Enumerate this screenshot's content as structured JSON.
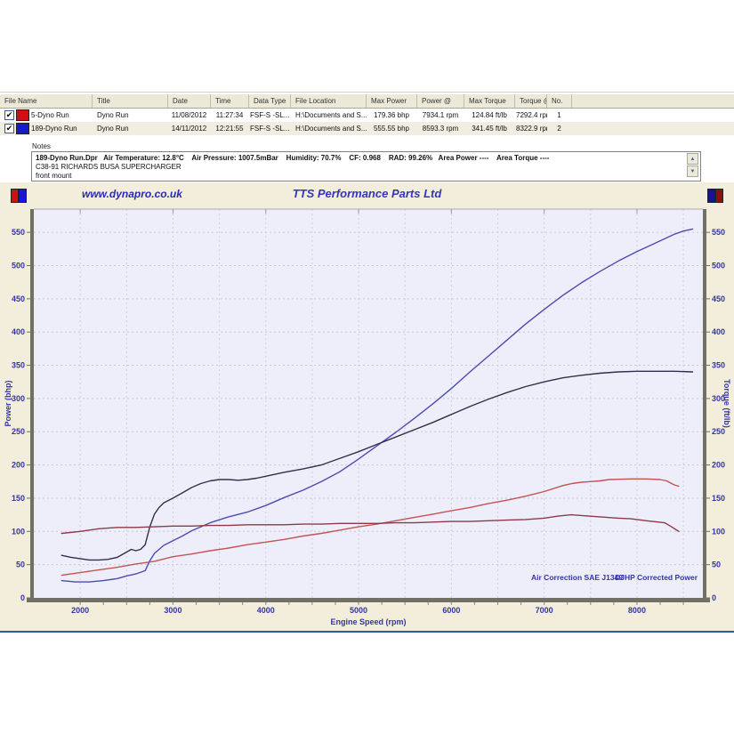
{
  "table": {
    "columns": [
      "File Name",
      "Title",
      "Date",
      "Time",
      "Data Type",
      "File Location",
      "Max Power",
      "Power @",
      "Max Torque",
      "Torque @",
      "No."
    ],
    "rows": [
      {
        "checked": true,
        "swatch_color": "#d01010",
        "cells": [
          "5-Dyno Run",
          "Dyno Run",
          "11/08/2012",
          "11:27:34",
          "FSF-S -SL...",
          "H:\\Documents and S...",
          "179.36 bhp",
          "7934.1 rpm",
          "124.84 ft/lb",
          "7292.4 rpm",
          "1"
        ]
      },
      {
        "checked": true,
        "swatch_color": "#1818cc",
        "cells": [
          "189-Dyno Run",
          "Dyno Run",
          "14/11/2012",
          "12:21:55",
          "FSF-S -SL...",
          "H:\\Documents and S...",
          "555.55 bhp",
          "8593.3 rpm",
          "341.45 ft/lb",
          "8322.9 rpm",
          "2"
        ]
      }
    ]
  },
  "notes": {
    "label": "Notes",
    "line1": "189-Dyno Run.Dpr   Air Temperature: 12.8°C    Air Pressure: 1007.5mBar    Humidity: 70.7%    CF: 0.968    RAD: 99.26%   Area Power ----    Area Torque ----",
    "line2": "C38-91 RICHARDS BUSA SUPERCHARGER",
    "line3": "front mount",
    "scroll_up": "▲",
    "scroll_down": "▼"
  },
  "chart_header": {
    "website": "www.dynapro.co.uk",
    "title": "TTS Performance Parts Ltd",
    "left_swatches": [
      "#d01010",
      "#1818cc"
    ],
    "right_swatches": [
      "#16168c",
      "#8c1010"
    ]
  },
  "chart_data": {
    "type": "line",
    "title": "TTS Performance Parts Ltd",
    "xlabel": "Engine Speed (rpm)",
    "ylabel_left": "Power (bhp)",
    "ylabel_right": "Torque (ft/lb)",
    "x_range": [
      1500,
      8710
    ],
    "y_range": [
      0,
      585
    ],
    "x_ticks": [
      2000,
      3000,
      4000,
      5000,
      6000,
      7000,
      8000
    ],
    "y_ticks": [
      0,
      50,
      100,
      150,
      200,
      250,
      300,
      350,
      400,
      450,
      500,
      550
    ],
    "grid": true,
    "annotations": [
      "Air Correction SAE J1349",
      "DJHP Corrected Power"
    ],
    "series": [
      {
        "name": "189-Dyno Run Power (bhp)",
        "color": "#4c4cb0",
        "max": "555.55 bhp @ 8593.3 rpm",
        "points": [
          [
            1800,
            26
          ],
          [
            1950,
            24
          ],
          [
            2100,
            24
          ],
          [
            2250,
            26
          ],
          [
            2400,
            29
          ],
          [
            2500,
            33
          ],
          [
            2600,
            36
          ],
          [
            2700,
            41
          ],
          [
            2750,
            56
          ],
          [
            2800,
            67
          ],
          [
            2900,
            79
          ],
          [
            3000,
            86
          ],
          [
            3100,
            93
          ],
          [
            3200,
            101
          ],
          [
            3400,
            113
          ],
          [
            3600,
            122
          ],
          [
            3800,
            129
          ],
          [
            4000,
            139
          ],
          [
            4200,
            151
          ],
          [
            4400,
            162
          ],
          [
            4600,
            175
          ],
          [
            4800,
            190
          ],
          [
            5000,
            209
          ],
          [
            5200,
            229
          ],
          [
            5400,
            249
          ],
          [
            5600,
            270
          ],
          [
            5800,
            292
          ],
          [
            6000,
            315
          ],
          [
            6200,
            340
          ],
          [
            6400,
            364
          ],
          [
            6600,
            388
          ],
          [
            6800,
            412
          ],
          [
            7000,
            434
          ],
          [
            7200,
            455
          ],
          [
            7400,
            474
          ],
          [
            7600,
            491
          ],
          [
            7800,
            507
          ],
          [
            8000,
            521
          ],
          [
            8200,
            534
          ],
          [
            8400,
            547
          ],
          [
            8500,
            552
          ],
          [
            8600,
            555
          ]
        ]
      },
      {
        "name": "189-Dyno Run Torque (ft/lb)",
        "color": "#30304a",
        "max": "341.45 ft/lb @ 8322.9 rpm",
        "points": [
          [
            1800,
            64
          ],
          [
            1900,
            61
          ],
          [
            2000,
            59
          ],
          [
            2100,
            57
          ],
          [
            2200,
            57
          ],
          [
            2300,
            58
          ],
          [
            2400,
            61
          ],
          [
            2500,
            69
          ],
          [
            2550,
            73
          ],
          [
            2600,
            71
          ],
          [
            2650,
            73
          ],
          [
            2700,
            80
          ],
          [
            2750,
            107
          ],
          [
            2800,
            126
          ],
          [
            2850,
            136
          ],
          [
            2900,
            143
          ],
          [
            3000,
            150
          ],
          [
            3100,
            158
          ],
          [
            3200,
            166
          ],
          [
            3300,
            172
          ],
          [
            3400,
            176
          ],
          [
            3500,
            178
          ],
          [
            3600,
            178
          ],
          [
            3700,
            177
          ],
          [
            3800,
            178
          ],
          [
            3900,
            180
          ],
          [
            4000,
            183
          ],
          [
            4200,
            189
          ],
          [
            4400,
            194
          ],
          [
            4600,
            200
          ],
          [
            4800,
            210
          ],
          [
            5000,
            220
          ],
          [
            5200,
            231
          ],
          [
            5400,
            242
          ],
          [
            5600,
            253
          ],
          [
            5800,
            264
          ],
          [
            6000,
            276
          ],
          [
            6200,
            288
          ],
          [
            6400,
            299
          ],
          [
            6600,
            309
          ],
          [
            6800,
            318
          ],
          [
            7000,
            325
          ],
          [
            7200,
            331
          ],
          [
            7400,
            335
          ],
          [
            7600,
            338
          ],
          [
            7800,
            340
          ],
          [
            8000,
            341
          ],
          [
            8200,
            341
          ],
          [
            8400,
            341
          ],
          [
            8600,
            340
          ]
        ]
      },
      {
        "name": "5-Dyno Run Power (bhp)",
        "color": "#c25454",
        "max": "179.36 bhp @ 7934.1 rpm",
        "points": [
          [
            1800,
            34
          ],
          [
            2000,
            38
          ],
          [
            2200,
            42
          ],
          [
            2400,
            46
          ],
          [
            2600,
            51
          ],
          [
            2800,
            55
          ],
          [
            3000,
            62
          ],
          [
            3200,
            66
          ],
          [
            3400,
            71
          ],
          [
            3600,
            75
          ],
          [
            3800,
            80
          ],
          [
            4000,
            84
          ],
          [
            4200,
            88
          ],
          [
            4400,
            93
          ],
          [
            4600,
            97
          ],
          [
            4800,
            102
          ],
          [
            5000,
            107
          ],
          [
            5200,
            111
          ],
          [
            5400,
            116
          ],
          [
            5600,
            121
          ],
          [
            5800,
            126
          ],
          [
            6000,
            131
          ],
          [
            6200,
            136
          ],
          [
            6400,
            142
          ],
          [
            6600,
            147
          ],
          [
            6800,
            153
          ],
          [
            7000,
            160
          ],
          [
            7200,
            169
          ],
          [
            7300,
            172
          ],
          [
            7400,
            174
          ],
          [
            7500,
            175
          ],
          [
            7600,
            176
          ],
          [
            7700,
            178
          ],
          [
            7934,
            179
          ],
          [
            8100,
            179
          ],
          [
            8250,
            178
          ],
          [
            8320,
            176
          ],
          [
            8400,
            170
          ],
          [
            8450,
            168
          ]
        ]
      },
      {
        "name": "5-Dyno Run Torque (ft/lb)",
        "color": "#8c3a46",
        "max": "124.84 ft/lb @ 7292.4 rpm",
        "points": [
          [
            1800,
            97
          ],
          [
            2000,
            100
          ],
          [
            2200,
            104
          ],
          [
            2400,
            106
          ],
          [
            2600,
            106
          ],
          [
            2800,
            107
          ],
          [
            3000,
            108
          ],
          [
            3200,
            108
          ],
          [
            3400,
            109
          ],
          [
            3600,
            109
          ],
          [
            3800,
            110
          ],
          [
            4000,
            110
          ],
          [
            4200,
            110
          ],
          [
            4400,
            111
          ],
          [
            4600,
            111
          ],
          [
            4800,
            112
          ],
          [
            5000,
            112
          ],
          [
            5200,
            112
          ],
          [
            5400,
            113
          ],
          [
            5600,
            113
          ],
          [
            5800,
            114
          ],
          [
            6000,
            115
          ],
          [
            6200,
            115
          ],
          [
            6400,
            116
          ],
          [
            6600,
            117
          ],
          [
            6800,
            118
          ],
          [
            7000,
            120
          ],
          [
            7150,
            123
          ],
          [
            7292,
            125
          ],
          [
            7400,
            124
          ],
          [
            7600,
            122
          ],
          [
            7800,
            120
          ],
          [
            7934,
            119
          ],
          [
            8100,
            116
          ],
          [
            8300,
            113
          ],
          [
            8360,
            108
          ],
          [
            8450,
            100
          ]
        ]
      }
    ]
  }
}
